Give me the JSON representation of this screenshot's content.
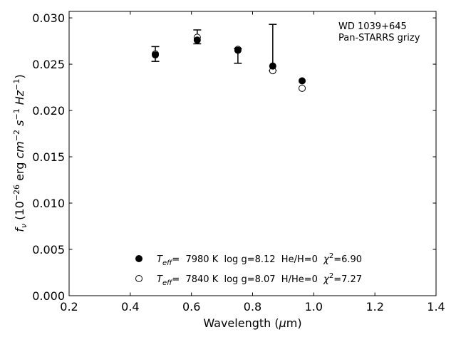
{
  "chart_data": {
    "type": "scatter",
    "xlabel": "Wavelength (μm)",
    "ylabel": "fν (10⁻²⁶ erg cm⁻² s⁻¹ Hz⁻¹)",
    "xlim": [
      0.2,
      1.4
    ],
    "ylim": [
      0.0,
      0.0307
    ],
    "x_ticks": [
      "0.2",
      "0.4",
      "0.6",
      "0.8",
      "1.0",
      "1.2",
      "1.4"
    ],
    "y_ticks": [
      "0.000",
      "0.005",
      "0.010",
      "0.015",
      "0.020",
      "0.025",
      "0.030"
    ],
    "grid": false,
    "annotation": [
      "WD 1039+645",
      "Pan-STARRS grizy"
    ],
    "observed": {
      "x": [
        0.482,
        0.619,
        0.752,
        0.866
      ],
      "y": [
        0.0261,
        0.0279,
        0.0266,
        0.0247
      ],
      "yerr_low": [
        0.0008,
        0.0007,
        0.0015,
        0.0004
      ],
      "yerr_high": [
        0.0008,
        0.0008,
        0.0001,
        0.0046
      ]
    },
    "series": [
      {
        "name": "Teff= 7980 K  log g=8.12  He/H=0  χ²=6.90",
        "marker": "filled-circle",
        "color": "#000000",
        "x": [
          0.482,
          0.619,
          0.752,
          0.866,
          0.962
        ],
        "y": [
          0.026,
          0.0276,
          0.0265,
          0.0248,
          0.0232
        ]
      },
      {
        "name": "Teff= 7840 K  log g=8.07  H/He=0  χ²=7.27",
        "marker": "open-circle",
        "color": "#000000",
        "x": [
          0.482,
          0.619,
          0.752,
          0.866,
          0.962
        ],
        "y": [
          0.0261,
          0.0279,
          0.0266,
          0.0243,
          0.0224
        ]
      }
    ],
    "legend": [
      {
        "prefix": "T",
        "sub": "eff",
        "mid": "=  7980 K  log g=8.12  He/H=0  ",
        "chi": "χ",
        "sup": "2",
        "suffix": "=6.90"
      },
      {
        "prefix": "T",
        "sub": "eff",
        "mid": "=  7840 K  log g=8.07  H/He=0  ",
        "chi": "χ",
        "sup": "2",
        "suffix": "=7.27"
      }
    ],
    "legend_position": "lower-center"
  }
}
